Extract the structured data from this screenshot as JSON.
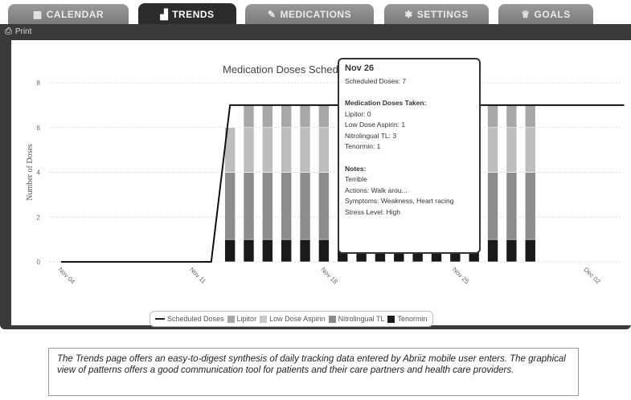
{
  "tabs": [
    {
      "label": "CALENDAR",
      "icon": "calendar-icon",
      "glyph": "▦",
      "active": false
    },
    {
      "label": "TRENDS",
      "icon": "bar-chart-icon",
      "glyph": "▟",
      "active": true
    },
    {
      "label": "MEDICATIONS",
      "icon": "pill-icon",
      "glyph": "✎",
      "active": false
    },
    {
      "label": "SETTINGS",
      "icon": "gear-icon",
      "glyph": "✱",
      "active": false
    },
    {
      "label": "GOALS",
      "icon": "trophy-icon",
      "glyph": "♕",
      "active": false
    }
  ],
  "toolbar": {
    "print_label": "Print",
    "print_icon": "printer-icon"
  },
  "chart_data": {
    "type": "bar",
    "title": "Medication Doses Scheduled",
    "ylabel": "Number of Doses",
    "ylim": [
      0,
      8
    ],
    "yticks": [
      "0",
      "2",
      "4",
      "6",
      "8"
    ],
    "xticks": [
      "Nov 04",
      "Nov 11",
      "Nov 18",
      "Nov 25",
      "Dec 02"
    ],
    "grid": true,
    "stacked": true,
    "categories": [
      "Nov 13",
      "Nov 14",
      "Nov 15",
      "Nov 16",
      "Nov 17",
      "Nov 18",
      "Nov 19",
      "Nov 20",
      "Nov 21",
      "Nov 22",
      "Nov 23",
      "Nov 24",
      "Nov 25",
      "Nov 26",
      "Nov 27",
      "Nov 28",
      "Nov 29"
    ],
    "series": [
      {
        "name": "Tenormin",
        "color": "#1a1a1a",
        "values": [
          1,
          1,
          1,
          1,
          1,
          1,
          1,
          1,
          1,
          1,
          1,
          1,
          1,
          1,
          1,
          1,
          1
        ]
      },
      {
        "name": "Nitrolingual TL",
        "color": "#8c8c8c",
        "values": [
          3,
          3,
          3,
          3,
          3,
          3,
          3,
          3,
          3,
          3,
          3,
          3,
          3,
          3,
          3,
          3,
          3
        ]
      },
      {
        "name": "Low Dose Aspirin",
        "color": "#bdbdbd",
        "values": [
          2,
          2,
          2,
          2,
          2,
          2,
          2,
          2,
          2,
          1,
          2,
          2,
          2,
          1,
          2,
          2,
          2
        ]
      },
      {
        "name": "Lipitor",
        "color": "#a8a8a8",
        "values": [
          0,
          1,
          1,
          1,
          1,
          1,
          1,
          1,
          1,
          1,
          1,
          1,
          1,
          0,
          1,
          1,
          1
        ]
      }
    ],
    "line_series": {
      "name": "Scheduled Doses",
      "color": "#111111",
      "x": [
        "Nov 04",
        "Nov 12",
        "Nov 13",
        "Dec 04"
      ],
      "values": [
        0,
        0,
        7,
        7
      ]
    },
    "legend": [
      "Scheduled Doses",
      "Lipitor",
      "Low Dose Aspirin",
      "Nitrolingual TL",
      "Tenormin"
    ],
    "legend_position": "bottom-center"
  },
  "tooltip": {
    "date": "Nov 26",
    "scheduled": "Scheduled Doses: 7",
    "taken_header": "Medication Doses Taken:",
    "taken": [
      "Lipitor: 0",
      "Low Dose Aspirin: 1",
      "Nitrolingual TL: 3",
      "Tenormin: 1"
    ],
    "notes_header": "Notes:",
    "notes": [
      "Terrible",
      "Actions: Walk arou...",
      "Symptoms: Weakness, Heart racing",
      "Stress Level: High"
    ]
  },
  "caption": "The Trends page offers an easy-to-digest synthesis of daily tracking data entered by Abriiz mobile user enters. The graphical view of patterns offers a good communication tool for patients and their care partners and health care providers."
}
